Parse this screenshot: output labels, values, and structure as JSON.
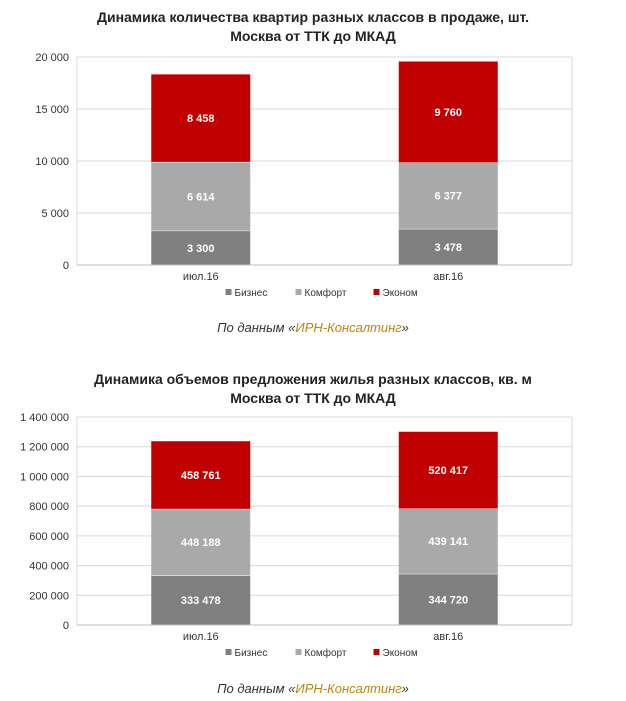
{
  "chart_data": [
    {
      "type": "bar",
      "stacked": true,
      "title": "Динамика количества квартир разных классов в продаже, шт.",
      "subtitle": "Москва от ТТК до МКАД",
      "categories": [
        "июл.16",
        "авг.16"
      ],
      "series": [
        {
          "name": "Бизнес",
          "color": "#808080",
          "values": [
            3300,
            3478
          ],
          "labels": [
            "3 300",
            "3 478"
          ]
        },
        {
          "name": "Комфорт",
          "color": "#a9a9a9",
          "values": [
            6614,
            6377
          ],
          "labels": [
            "6 614",
            "6 377"
          ]
        },
        {
          "name": "Эконом",
          "color": "#c00000",
          "values": [
            8458,
            9760
          ],
          "labels": [
            "8 458",
            "9 760"
          ]
        }
      ],
      "ylim": [
        0,
        20000
      ],
      "yticks": [
        0,
        5000,
        10000,
        15000,
        20000
      ],
      "ytick_labels": [
        "0",
        "5 000",
        "10 000",
        "15 000",
        "20 000"
      ],
      "grid": true,
      "legend_position": "bottom"
    },
    {
      "type": "bar",
      "stacked": true,
      "title": "Динамика объемов предложения жилья разных классов, кв. м",
      "subtitle": "Москва от ТТК до МКАД",
      "categories": [
        "июл.16",
        "авг.16"
      ],
      "series": [
        {
          "name": "Бизнес",
          "color": "#808080",
          "values": [
            333478,
            344720
          ],
          "labels": [
            "333 478",
            "344 720"
          ]
        },
        {
          "name": "Комфорт",
          "color": "#a9a9a9",
          "values": [
            448188,
            439141
          ],
          "labels": [
            "448 188",
            "439 141"
          ]
        },
        {
          "name": "Эконом",
          "color": "#c00000",
          "values": [
            458761,
            520417
          ],
          "labels": [
            "458 761",
            "520 417"
          ]
        }
      ],
      "ylim": [
        0,
        1400000
      ],
      "yticks": [
        0,
        200000,
        400000,
        600000,
        800000,
        1000000,
        1200000,
        1400000
      ],
      "ytick_labels": [
        "0",
        "200 000",
        "400 000",
        "600 000",
        "800 000",
        "1 000 000",
        "1 200 000",
        "1 400 000"
      ],
      "grid": true,
      "legend_position": "bottom"
    }
  ],
  "sources": [
    {
      "prefix": "По данным «",
      "name": "ИРН-Консалтинг",
      "suffix": "»"
    },
    {
      "prefix": "По данным «",
      "name": "ИРН-Консалтинг",
      "suffix": "»"
    }
  ]
}
